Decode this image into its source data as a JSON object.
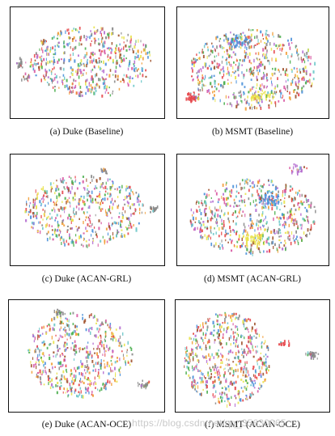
{
  "figure": {
    "panels": [
      {
        "id": "a",
        "caption": "(a)  Duke (Baseline)",
        "dataset": "Duke",
        "method": "Baseline"
      },
      {
        "id": "b",
        "caption": "(b)  MSMT (Baseline)",
        "dataset": "MSMT",
        "method": "Baseline"
      },
      {
        "id": "c",
        "caption": "(c)  Duke (ACAN-GRL)",
        "dataset": "Duke",
        "method": "ACAN-GRL"
      },
      {
        "id": "d",
        "caption": "(d)  MSMT (ACAN-GRL)",
        "dataset": "MSMT",
        "method": "ACAN-GRL"
      },
      {
        "id": "e",
        "caption": "(e)  Duke (ACAN-OCE)",
        "dataset": "Duke",
        "method": "ACAN-OCE"
      },
      {
        "id": "f",
        "caption": "(f)  MSMT (ACAN-OCE)",
        "dataset": "MSMT",
        "method": "ACAN-OCE"
      }
    ],
    "point_colors": [
      "#e5474b",
      "#4a90d9",
      "#f29e3a",
      "#4caf50",
      "#b56fd0",
      "#8a8a8a",
      "#e9e24a",
      "#d85aa3",
      "#6bc7c9",
      "#a0522d"
    ],
    "watermark": "https://blog.csdn.net/qq_35630065"
  }
}
